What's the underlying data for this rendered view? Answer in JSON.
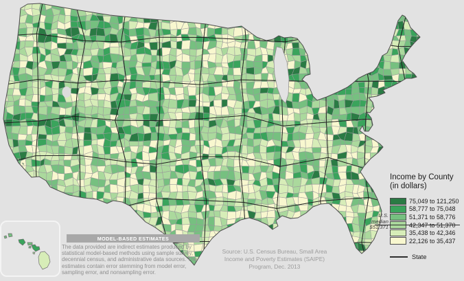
{
  "background_color": "#e2e2e2",
  "legend": {
    "title": "Income by County",
    "subtitle": "(in dollars)",
    "classes": [
      {
        "label": "75,049 to 121,250",
        "color": "#2a7b44"
      },
      {
        "label": "58,777 to 75,048",
        "color": "#3aa45c"
      },
      {
        "label": "51,371 to 58,776",
        "color": "#76c080"
      },
      {
        "label": "42,347 to 51,370",
        "color": "#abd99d"
      },
      {
        "label": "35,438 to 42,346",
        "color": "#d7edb8"
      },
      {
        "label": "22,126 to 35,437",
        "color": "#f8f7cf"
      }
    ],
    "median_lines": [
      "U.S.",
      "median",
      "$51,371"
    ],
    "state_label": "State"
  },
  "notes": {
    "model_based_title": "MODEL-BASED ESTIMATES",
    "model_based_body": "The data provided are indirect estimates produced by statistical model-based methods using sample survey, decennial census, and administrative data sources. The estimates contain error stemming from model error, sampling error, and nonsampling error.",
    "source": "Source: U.S. Census Bureau, Small Area Income and Poverty Estimates (SAIPE) Program, Dec. 2013"
  },
  "map": {
    "type": "choropleth",
    "region": "United States counties (with Hawaii inset)",
    "us_median": "$51,371",
    "county_border_color": "#9a9a9a",
    "state_border_color": "#1f1f1f",
    "outline_color": "#4d4d4d",
    "water_color": "#e2e2e2"
  }
}
